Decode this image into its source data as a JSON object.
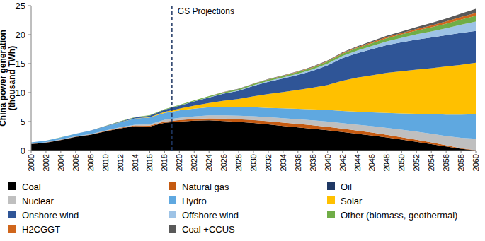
{
  "chart_data": {
    "type": "area",
    "stacked": true,
    "y_label": "China power generation (thousand TWh)",
    "annotations": [
      {
        "text": "GS Projections",
        "x": 2019
      }
    ],
    "x": [
      2000,
      2002,
      2004,
      2006,
      2008,
      2010,
      2012,
      2014,
      2016,
      2018,
      2020,
      2022,
      2024,
      2026,
      2028,
      2030,
      2032,
      2034,
      2036,
      2038,
      2040,
      2042,
      2044,
      2046,
      2048,
      2050,
      2052,
      2054,
      2056,
      2058,
      2060
    ],
    "xlim": [
      2000,
      2060
    ],
    "xticks": [
      2000,
      2002,
      2004,
      2006,
      2008,
      2010,
      2012,
      2014,
      2016,
      2018,
      2020,
      2022,
      2024,
      2026,
      2028,
      2030,
      2032,
      2034,
      2036,
      2038,
      2040,
      2042,
      2044,
      2046,
      2048,
      2050,
      2052,
      2054,
      2056,
      2058,
      2060
    ],
    "ylim": [
      0,
      25
    ],
    "yticks": [
      0,
      5,
      10,
      15,
      20,
      25
    ],
    "legend": "bottom",
    "series": [
      {
        "name": "Coal",
        "color": "#000000",
        "values": [
          1.1,
          1.35,
          1.8,
          2.35,
          2.7,
          3.3,
          3.8,
          4.2,
          4.15,
          4.8,
          5.0,
          5.15,
          5.2,
          5.1,
          4.95,
          4.75,
          4.5,
          4.25,
          4.0,
          3.75,
          3.5,
          3.2,
          2.9,
          2.6,
          2.25,
          1.9,
          1.5,
          1.1,
          0.7,
          0.3,
          0
        ]
      },
      {
        "name": "Natural gas",
        "color": "#c55a11",
        "values": [
          0.02,
          0.02,
          0.03,
          0.03,
          0.04,
          0.07,
          0.1,
          0.12,
          0.15,
          0.2,
          0.25,
          0.3,
          0.35,
          0.4,
          0.45,
          0.5,
          0.55,
          0.58,
          0.6,
          0.6,
          0.6,
          0.58,
          0.55,
          0.5,
          0.45,
          0.4,
          0.35,
          0.3,
          0.2,
          0.1,
          0.05
        ]
      },
      {
        "name": "Oil",
        "color": "#1f3864",
        "values": [
          0.03,
          0.03,
          0.04,
          0.03,
          0.03,
          0.02,
          0.02,
          0.01,
          0.01,
          0.01,
          0.01,
          0.01,
          0.01,
          0.01,
          0.01,
          0.01,
          0.01,
          0,
          0,
          0,
          0,
          0,
          0,
          0,
          0,
          0,
          0,
          0,
          0,
          0,
          0
        ]
      },
      {
        "name": "Nuclear",
        "color": "#bfbfbf",
        "values": [
          0.02,
          0.03,
          0.05,
          0.05,
          0.07,
          0.07,
          0.1,
          0.13,
          0.21,
          0.29,
          0.37,
          0.42,
          0.5,
          0.55,
          0.6,
          0.65,
          0.7,
          0.75,
          0.8,
          0.85,
          0.9,
          0.95,
          1.0,
          1.1,
          1.2,
          1.3,
          1.4,
          1.5,
          1.6,
          1.8,
          2.0
        ]
      },
      {
        "name": "Hydro",
        "color": "#5fa8e0",
        "values": [
          0.22,
          0.28,
          0.35,
          0.43,
          0.58,
          0.7,
          0.87,
          1.06,
          1.18,
          1.2,
          1.3,
          1.35,
          1.4,
          1.45,
          1.5,
          1.55,
          1.6,
          1.7,
          1.8,
          1.9,
          2.0,
          2.1,
          2.25,
          2.4,
          2.6,
          2.8,
          3.1,
          3.4,
          3.7,
          4.0,
          4.2
        ]
      },
      {
        "name": "Solar",
        "color": "#ffc000",
        "values": [
          0,
          0,
          0,
          0,
          0,
          0,
          0.01,
          0.02,
          0.07,
          0.18,
          0.3,
          0.5,
          0.75,
          1.1,
          1.4,
          1.9,
          2.4,
          2.8,
          3.25,
          3.75,
          4.3,
          5.2,
          5.9,
          6.4,
          6.9,
          7.3,
          7.6,
          7.9,
          8.3,
          8.6,
          8.9
        ]
      },
      {
        "name": "Onshore wind",
        "color": "#2f5597",
        "values": [
          0,
          0,
          0,
          0,
          0.01,
          0.04,
          0.1,
          0.15,
          0.23,
          0.35,
          0.5,
          0.75,
          0.95,
          1.2,
          1.4,
          1.8,
          2.1,
          2.35,
          2.6,
          2.9,
          3.4,
          3.9,
          4.2,
          4.5,
          4.8,
          5.0,
          5.2,
          5.3,
          5.4,
          5.5,
          5.5
        ]
      },
      {
        "name": "Offshore wind",
        "color": "#9dc3e6",
        "values": [
          0,
          0,
          0,
          0,
          0,
          0,
          0,
          0.01,
          0.01,
          0.01,
          0.02,
          0.04,
          0.06,
          0.08,
          0.1,
          0.12,
          0.15,
          0.18,
          0.22,
          0.26,
          0.3,
          0.38,
          0.46,
          0.55,
          0.65,
          0.75,
          0.9,
          1.05,
          1.2,
          1.4,
          1.6
        ]
      },
      {
        "name": "Other (biomass, geothermal)",
        "color": "#70ad47",
        "values": [
          0.01,
          0.01,
          0.01,
          0.02,
          0.03,
          0.03,
          0.05,
          0.06,
          0.08,
          0.1,
          0.12,
          0.14,
          0.16,
          0.18,
          0.2,
          0.22,
          0.24,
          0.27,
          0.3,
          0.33,
          0.36,
          0.4,
          0.45,
          0.5,
          0.55,
          0.6,
          0.65,
          0.72,
          0.8,
          0.9,
          1.0
        ]
      },
      {
        "name": "H2CGGT",
        "color": "#d0661c",
        "values": [
          0,
          0,
          0,
          0,
          0,
          0,
          0,
          0,
          0,
          0,
          0,
          0,
          0,
          0.01,
          0.01,
          0.02,
          0.03,
          0.04,
          0.05,
          0.07,
          0.09,
          0.11,
          0.13,
          0.16,
          0.19,
          0.23,
          0.28,
          0.33,
          0.38,
          0.44,
          0.5
        ]
      },
      {
        "name": "Coal +CCUS",
        "color": "#595959",
        "values": [
          0,
          0,
          0,
          0,
          0,
          0,
          0,
          0,
          0,
          0,
          0,
          0.01,
          0.02,
          0.03,
          0.04,
          0.05,
          0.06,
          0.07,
          0.08,
          0.09,
          0.1,
          0.12,
          0.15,
          0.18,
          0.22,
          0.27,
          0.33,
          0.4,
          0.48,
          0.58,
          0.7
        ]
      }
    ]
  }
}
